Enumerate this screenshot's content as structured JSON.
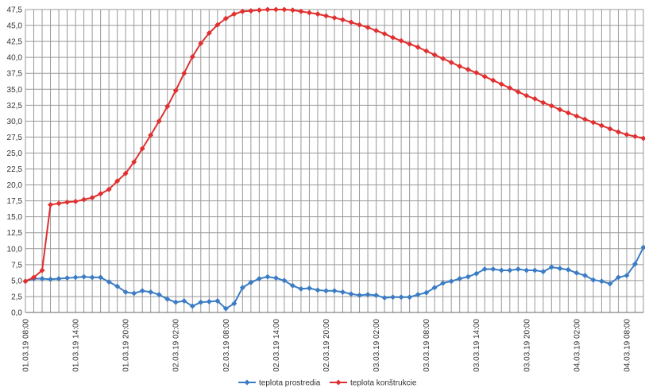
{
  "chart_data": {
    "type": "line",
    "categories": [
      "01.03.19 08:00",
      null,
      null,
      null,
      null,
      null,
      "01.03.19 14:00",
      null,
      null,
      null,
      null,
      null,
      "01.03.19 20:00",
      null,
      null,
      null,
      null,
      null,
      "02.03.19 02:00",
      null,
      null,
      null,
      null,
      null,
      "02.03.19 08:00",
      null,
      null,
      null,
      null,
      null,
      "02.03.19 14:00",
      null,
      null,
      null,
      null,
      null,
      "02.03.19 20:00",
      null,
      null,
      null,
      null,
      null,
      "03.03.19 02:00",
      null,
      null,
      null,
      null,
      null,
      "03.03.19 08:00",
      null,
      null,
      null,
      null,
      null,
      "03.03.19 14:00",
      null,
      null,
      null,
      null,
      null,
      "03.03.19 20:00",
      null,
      null,
      null,
      null,
      null,
      "04.03.19 02:00",
      null,
      null,
      null,
      null,
      null,
      "04.03.19 08:00",
      null,
      null
    ],
    "series": [
      {
        "name": "teplota prostredia",
        "color": "#3b7cc4",
        "values": [
          4.9,
          5.3,
          5.3,
          5.2,
          5.3,
          5.4,
          5.5,
          5.6,
          5.5,
          5.5,
          4.8,
          4.1,
          3.2,
          3.0,
          3.4,
          3.2,
          2.8,
          2.1,
          1.6,
          1.8,
          1.0,
          1.6,
          1.7,
          1.8,
          0.6,
          1.4,
          3.9,
          4.7,
          5.3,
          5.6,
          5.4,
          5.0,
          4.2,
          3.7,
          3.8,
          3.5,
          3.4,
          3.4,
          3.2,
          2.9,
          2.7,
          2.8,
          2.7,
          2.3,
          2.4,
          2.4,
          2.4,
          2.8,
          3.1,
          3.9,
          4.6,
          4.9,
          5.3,
          5.6,
          6.1,
          6.8,
          6.8,
          6.6,
          6.6,
          6.8,
          6.6,
          6.6,
          6.4,
          7.1,
          6.9,
          6.7,
          6.2,
          5.8,
          5.1,
          4.9,
          4.5,
          5.5,
          5.8,
          7.6,
          10.2
        ]
      },
      {
        "name": "teplota konštrukcie",
        "color": "#e03030",
        "values": [
          4.9,
          5.5,
          6.6,
          16.9,
          17.1,
          17.3,
          17.4,
          17.7,
          18.0,
          18.6,
          19.3,
          20.6,
          21.8,
          23.6,
          25.7,
          27.8,
          30.0,
          32.3,
          34.8,
          37.5,
          40.1,
          42.2,
          43.8,
          45.1,
          46.1,
          46.8,
          47.2,
          47.3,
          47.4,
          47.5,
          47.5,
          47.5,
          47.4,
          47.2,
          47.0,
          46.8,
          46.5,
          46.2,
          45.9,
          45.5,
          45.1,
          44.7,
          44.2,
          43.7,
          43.1,
          42.6,
          42.1,
          41.6,
          41.0,
          40.4,
          39.8,
          39.2,
          38.6,
          38.1,
          37.6,
          37.0,
          36.4,
          35.8,
          35.2,
          34.6,
          34.0,
          33.5,
          32.9,
          32.4,
          31.8,
          31.3,
          30.8,
          30.3,
          29.8,
          29.3,
          28.8,
          28.3,
          27.9,
          27.6,
          27.3
        ]
      }
    ],
    "ylim": [
      0,
      47.5
    ],
    "yticks": [
      {
        "value": 0,
        "label": "0,0"
      },
      {
        "value": 2.5,
        "label": "2,5"
      },
      {
        "value": 5,
        "label": "5,0"
      },
      {
        "value": 7.5,
        "label": "7,5"
      },
      {
        "value": 10,
        "label": "10,0"
      },
      {
        "value": 12.5,
        "label": "12,5"
      },
      {
        "value": 15,
        "label": "15,0"
      },
      {
        "value": 17.5,
        "label": "17,5"
      },
      {
        "value": 20,
        "label": "20,0"
      },
      {
        "value": 22.5,
        "label": "22,5"
      },
      {
        "value": 25,
        "label": "25,0"
      },
      {
        "value": 27.5,
        "label": "27,5"
      },
      {
        "value": 30,
        "label": "30,0"
      },
      {
        "value": 32.5,
        "label": "32,5"
      },
      {
        "value": 35,
        "label": "35,0"
      },
      {
        "value": 37.5,
        "label": "37,5"
      },
      {
        "value": 40,
        "label": "40,0"
      },
      {
        "value": 42.5,
        "label": "42,5"
      },
      {
        "value": 45,
        "label": "45,0"
      },
      {
        "value": 47.5,
        "label": "47,5"
      }
    ],
    "grid": true,
    "legend": "bottom"
  }
}
